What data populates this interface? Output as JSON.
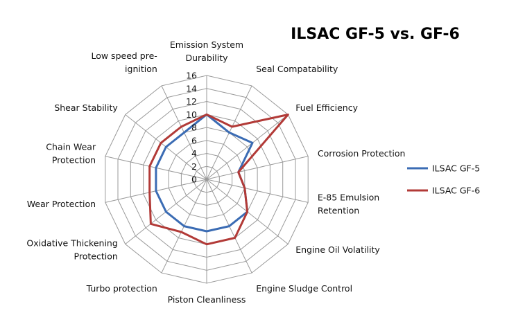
{
  "chart_data": {
    "type": "radar",
    "title": "ILSAC GF-5 vs. GF-6",
    "categories": [
      [
        "Emission System",
        "Durability"
      ],
      [
        "Seal Compatability"
      ],
      [
        "Fuel Efficiency"
      ],
      [
        "Corrosion Protection"
      ],
      [
        "E-85 Emulsion",
        "Retention"
      ],
      [
        "Engine Oil Volatility"
      ],
      [
        "Engine Sludge Control"
      ],
      [
        "Piston Cleanliness"
      ],
      [
        "Turbo protection"
      ],
      [
        "Oxidative Thickening",
        "Protection"
      ],
      [
        "Wear Protection"
      ],
      [
        "Chain Wear",
        "Protection"
      ],
      [
        "Shear Stability"
      ],
      [
        "Low speed pre-",
        "ignition"
      ]
    ],
    "ticks": [
      "0",
      "2",
      "4",
      "6",
      "8",
      "10",
      "12",
      "14",
      "16"
    ],
    "rmax": 16,
    "series": [
      {
        "name": "ILSAC GF-5",
        "color": "#3b6cb4",
        "values": [
          10,
          8,
          9,
          5,
          6,
          8,
          8,
          8,
          8,
          8,
          8,
          8,
          8,
          8
        ]
      },
      {
        "name": "ILSAC GF-6",
        "color": "#b23a37",
        "values": [
          10,
          9,
          16,
          5,
          6,
          8,
          10,
          10,
          9,
          11,
          9,
          9,
          9,
          9
        ]
      }
    ],
    "legend_position": "right"
  }
}
